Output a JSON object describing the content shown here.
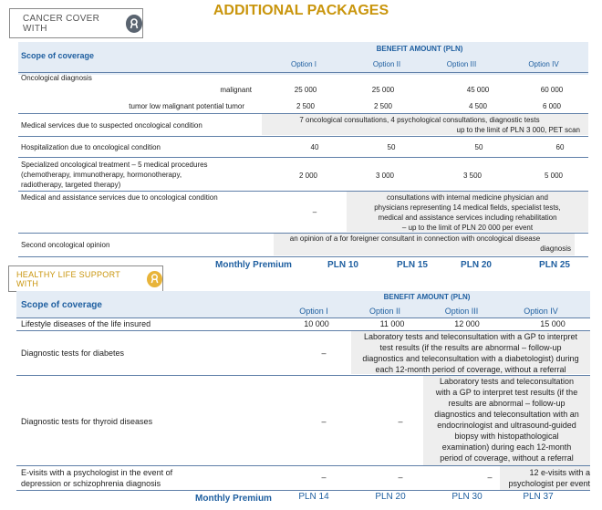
{
  "title": "ADDITIONAL PACKAGES",
  "cancer": {
    "tag": "CANCER COVER WITH",
    "benefit_header": "BENEFIT AMOUNT (PLN)",
    "scope_header": "Scope of coverage",
    "options": [
      "Option I",
      "Option II",
      "Option III",
      "Option IV"
    ],
    "rows": {
      "onc_diag": "Oncological diagnosis",
      "malignant": "malignant",
      "malignant_vals": [
        "25 000",
        "25 000",
        "45 000",
        "60 000"
      ],
      "tumor": "tumor low malignant potential tumor",
      "tumor_vals": [
        "2 500",
        "2 500",
        "4 500",
        "6 000"
      ],
      "med_services": "Medical services due to suspected oncological condition",
      "med_services_text_1": "7 oncological consultations, 4 psychological consultations, diagnostic tests",
      "med_services_text_2": "up to the limit of PLN 3 000, PET scan",
      "hosp": "Hospitalization due to oncological condition",
      "hosp_vals": [
        "40",
        "50",
        "50",
        "60"
      ],
      "treat_1": "Specialized oncological treatment – 5 medical procedures",
      "treat_2": "(chemotherapy, immunotherapy, hormonotherapy,",
      "treat_3": "radiotherapy, targeted therapy)",
      "treat_vals": [
        "2 000",
        "3 000",
        "3 500",
        "5 000"
      ],
      "assist": "Medical and assistance services due to oncological condition",
      "assist_dash": "–",
      "assist_text_1": "consultations with internal medicine physician and",
      "assist_text_2": "physicians representing 14 medical fields, specialist tests,",
      "assist_text_3": "medical and assistance services including rehabilitation",
      "assist_text_4": "– up to the limit of PLN 20 000 per event",
      "second": "Second oncological opinion",
      "second_text_1": "an opinion of a for foreigner consultant in connection with oncological disease",
      "second_text_2": "diagnosis"
    },
    "premium_label": "Monthly Premium",
    "premiums": [
      "PLN 10",
      "PLN 15",
      "PLN 20",
      "PLN 25"
    ]
  },
  "healthy": {
    "tag": "HEALTHY LIFE SUPPORT WITH",
    "benefit_header": "BENEFIT AMOUNT (PLN)",
    "scope_header": "Scope of coverage",
    "options": [
      "Option I",
      "Option II",
      "Option III",
      "Option IV"
    ],
    "rows": {
      "lifestyle": "Lifestyle diseases of the life insured",
      "lifestyle_vals": [
        "10 000",
        "11 000",
        "12 000",
        "15 000"
      ],
      "diabetes": "Diagnostic tests for diabetes",
      "dash": "–",
      "diab_1": "Laboratory tests and teleconsultation with a GP to interpret",
      "diab_2": "test results (if the results are abnormal – follow-up",
      "diab_3": "diagnostics and teleconsultation with a diabetologist) during",
      "diab_4": "each 12-month period of coverage, without a referral",
      "thyroid": "Diagnostic tests for thyroid diseases",
      "thy_1": "Laboratory tests and teleconsultation",
      "thy_2": "with a GP to interpret test results (if the",
      "thy_3": "results are abnormal – follow-up",
      "thy_4": "diagnostics and teleconsultation with an",
      "thy_5": "endocrinologist and ultrasound-guided",
      "thy_6": "biopsy with histopathological",
      "thy_7": "examination) during each 12-month",
      "thy_8": "period of coverage, without a referral",
      "evisit_1": "E-visits with a psychologist in the event of",
      "evisit_2": "depression or schizophrenia diagnosis",
      "evisit_text_1": "12 e-visits with a",
      "evisit_text_2": "psychologist per event"
    },
    "premium_label": "Monthly Premium",
    "premiums": [
      "PLN 14",
      "PLN 20",
      "PLN 30",
      "PLN 37"
    ]
  },
  "colors": {
    "accent_gold": "#c9950c",
    "accent_blue": "#1f5fa0",
    "icon_gray": "#5a6470"
  },
  "icons": [
    "ribbon-icon",
    "ribbon-icon"
  ]
}
